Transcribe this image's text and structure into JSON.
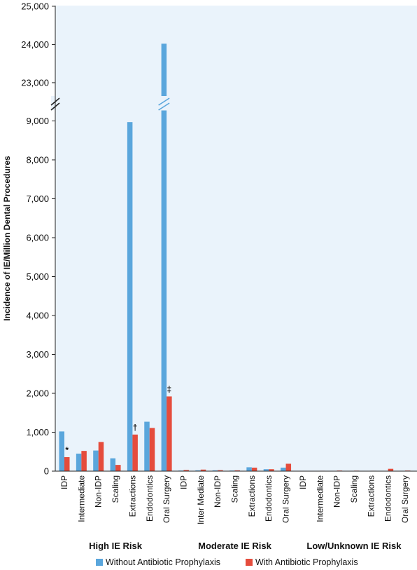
{
  "chart_data": {
    "type": "bar",
    "ylabel": "Incidence of IE/Million Dental Procedures",
    "yticks_lower": [
      "0",
      "1,000",
      "2,000",
      "3,000",
      "4,000",
      "5,000",
      "6,000",
      "7,000",
      "8,000",
      "9,000"
    ],
    "yticks_upper": [
      "23,000",
      "24,000",
      "25,000"
    ],
    "y_axis_break": true,
    "groups": [
      {
        "label": "High IE Risk",
        "categories": [
          "IDP",
          "Intermediate",
          "Non-IDP",
          "Scaling",
          "Extractions",
          "Endodontics",
          "Oral Surgery"
        ]
      },
      {
        "label": "Moderate IE Risk",
        "categories": [
          "IDP",
          "Inter Mediate",
          "Non-IDP",
          "Scaling",
          "Extractions",
          "Endodontics",
          "Oral Surgery"
        ]
      },
      {
        "label": "Low/Unknown IE Risk",
        "categories": [
          "IDP",
          "Intermediate",
          "Non-IDP",
          "Scaling",
          "Extractions",
          "Endodontics",
          "Oral Surgery"
        ]
      }
    ],
    "series": [
      {
        "name": "Without Antibiotic Prophylaxis",
        "color": "#5aa6dc",
        "values": [
          1020,
          450,
          530,
          330,
          8970,
          1270,
          24020,
          15,
          20,
          20,
          15,
          100,
          50,
          90,
          8,
          8,
          8,
          8,
          8,
          8,
          10
        ]
      },
      {
        "name": "With Antibiotic Prophylaxis",
        "color": "#e54c3c",
        "values": [
          360,
          520,
          750,
          160,
          940,
          1110,
          1920,
          30,
          40,
          25,
          20,
          90,
          50,
          190,
          8,
          10,
          15,
          12,
          10,
          60,
          15
        ]
      }
    ],
    "annotations": [
      {
        "text": "*",
        "index": 0
      },
      {
        "text": "†",
        "index": 4
      },
      {
        "text": "‡",
        "index": 6
      }
    ]
  }
}
